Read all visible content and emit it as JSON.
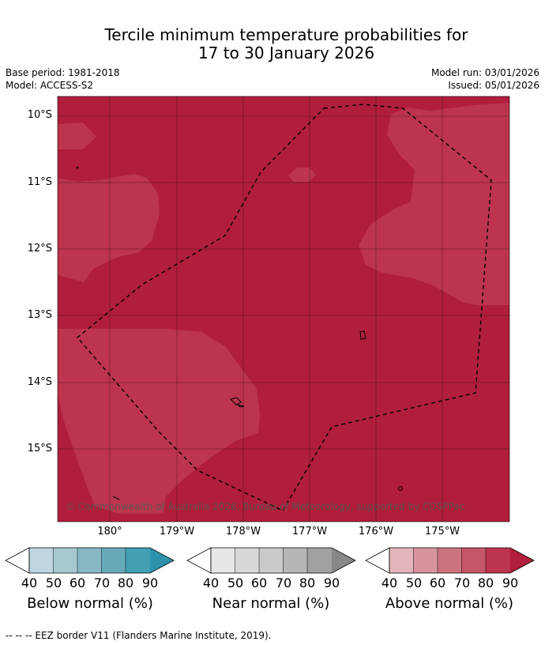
{
  "title": {
    "line1": "Tercile minimum temperature probabilities for",
    "line2": "17 to 30 January 2026"
  },
  "meta": {
    "base_period": "Base period: 1981-2018",
    "model": "Model: ACCESS-S2",
    "model_run": "Model run: 03/01/2026",
    "issued": "Issued: 05/01/2026"
  },
  "map": {
    "lat_labels": [
      "10°S",
      "11°S",
      "12°S",
      "13°S",
      "14°S",
      "15°S"
    ],
    "lon_labels": [
      "180°",
      "179°W",
      "178°W",
      "177°W",
      "176°W",
      "175°W"
    ],
    "copyright": "© Commonwealth of Australia 2026, Bureau of Meteorology, supported by COSPPac",
    "colors": {
      "above_80_90": "#b01e3b",
      "above_70_80": "#bc344e",
      "border": "#000000"
    }
  },
  "colorbars": [
    {
      "label": "Below normal (%)",
      "ticks": [
        "40",
        "50",
        "60",
        "70",
        "80",
        "90"
      ],
      "colors": [
        "#bdd6df",
        "#a6c9d1",
        "#88b7c4",
        "#67aab9",
        "#43a0b2",
        "#2d93ad"
      ]
    },
    {
      "label": "Near normal (%)",
      "ticks": [
        "40",
        "50",
        "60",
        "70",
        "80",
        "90"
      ],
      "colors": [
        "#e7e7e7",
        "#d8d8d8",
        "#cacaca",
        "#b6b6b6",
        "#a1a1a1",
        "#888888"
      ]
    },
    {
      "label": "Above normal (%)",
      "ticks": [
        "40",
        "50",
        "60",
        "70",
        "80",
        "90"
      ],
      "colors": [
        "#e2b5bb",
        "#d8939d",
        "#cc747e",
        "#c45566",
        "#bc344e",
        "#b01e3b"
      ]
    }
  ],
  "footer": "--  --  -- EEZ border V11 (Flanders Marine Institute, 2019)."
}
